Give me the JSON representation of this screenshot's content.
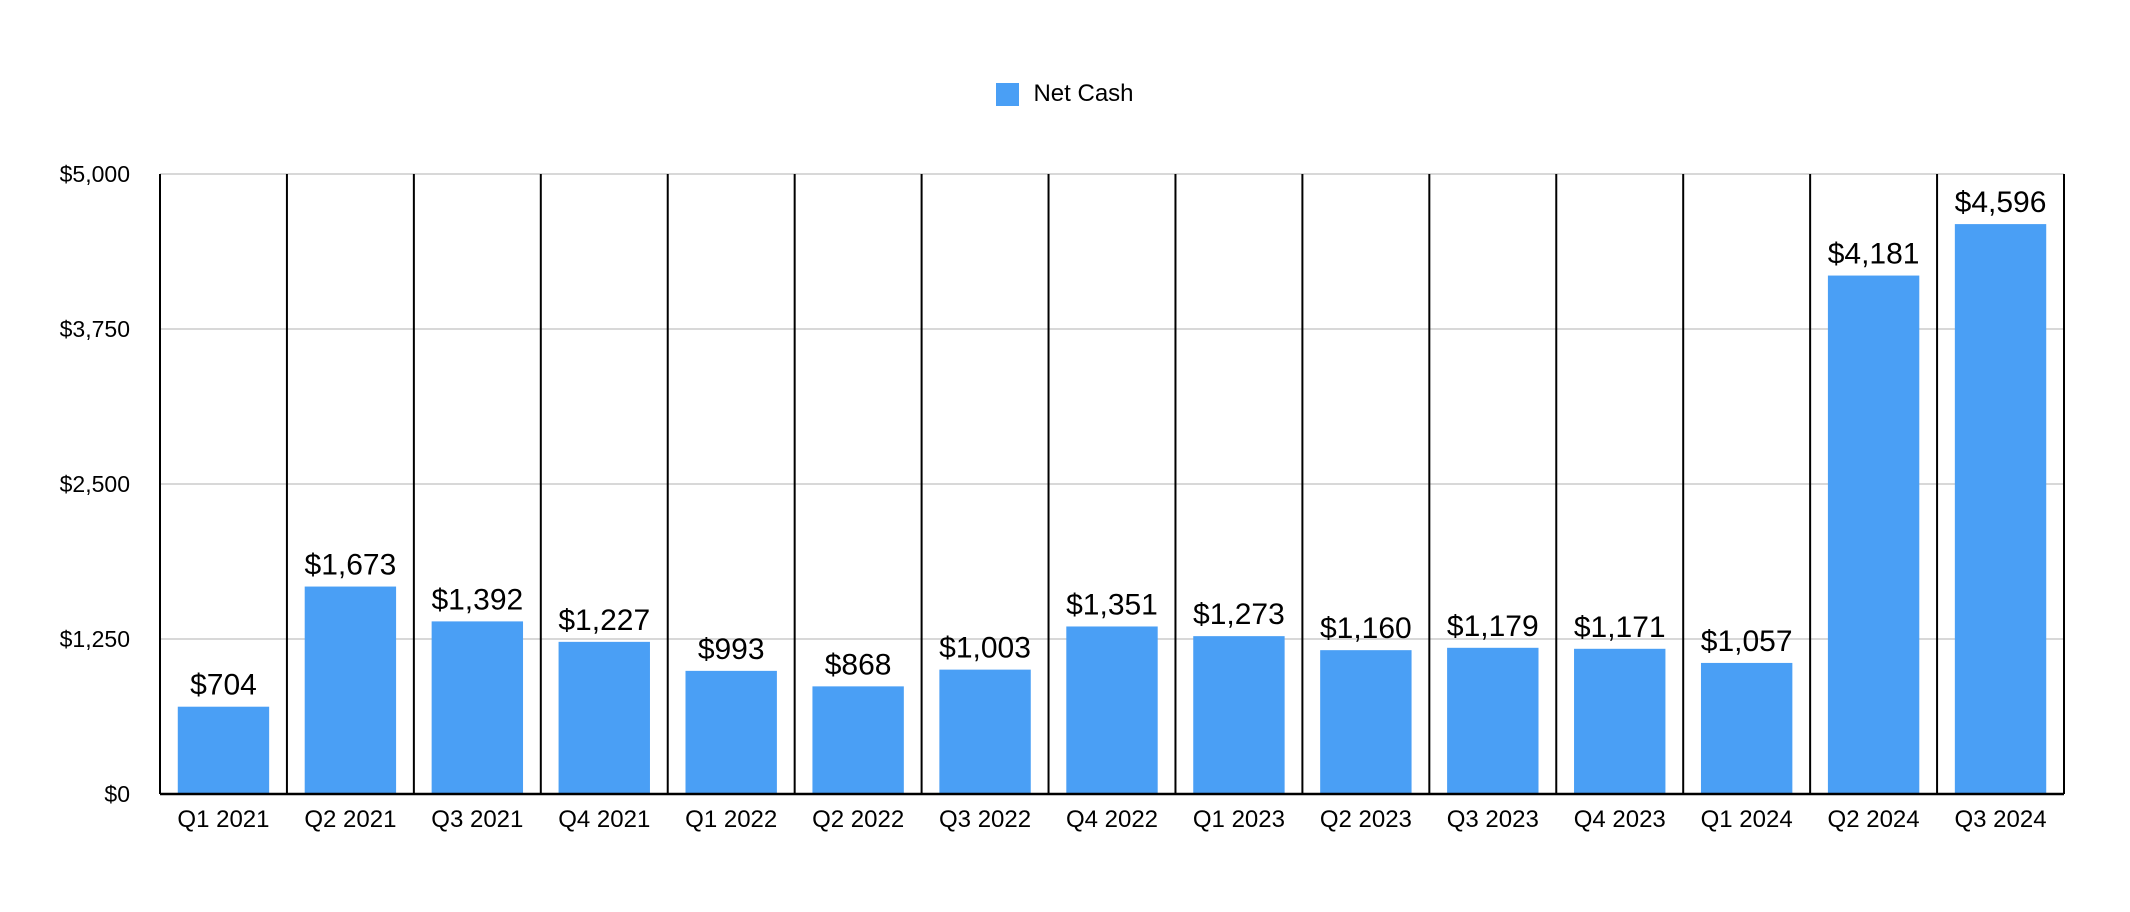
{
  "chart_data": {
    "type": "bar",
    "categories": [
      "Q1 2021",
      "Q2 2021",
      "Q3 2021",
      "Q4 2021",
      "Q1 2022",
      "Q2 2022",
      "Q3 2022",
      "Q4 2022",
      "Q1 2023",
      "Q2 2023",
      "Q3 2023",
      "Q4 2023",
      "Q1 2024",
      "Q2 2024",
      "Q3 2024"
    ],
    "series": [
      {
        "name": "Net Cash",
        "values": [
          704,
          1673,
          1392,
          1227,
          993,
          868,
          1003,
          1351,
          1273,
          1160,
          1179,
          1171,
          1057,
          4181,
          4596
        ],
        "labels": [
          "$704",
          "$1,673",
          "$1,392",
          "$1,227",
          "$993",
          "$868",
          "$1,003",
          "$1,351",
          "$1,273",
          "$1,160",
          "$1,179",
          "$1,171",
          "$1,057",
          "$4,181",
          "$4,596"
        ]
      }
    ],
    "yticks": [
      0,
      1250,
      2500,
      3750,
      5000
    ],
    "ytick_labels": [
      "$0",
      "$1,250",
      "$2,500",
      "$3,750",
      "$5,000"
    ],
    "ylim": [
      0,
      5000
    ],
    "legend_position": "top-center",
    "grid": true,
    "colors": {
      "bar": "#4a9ff5",
      "grid": "#cccccc",
      "axis": "#000000"
    }
  }
}
